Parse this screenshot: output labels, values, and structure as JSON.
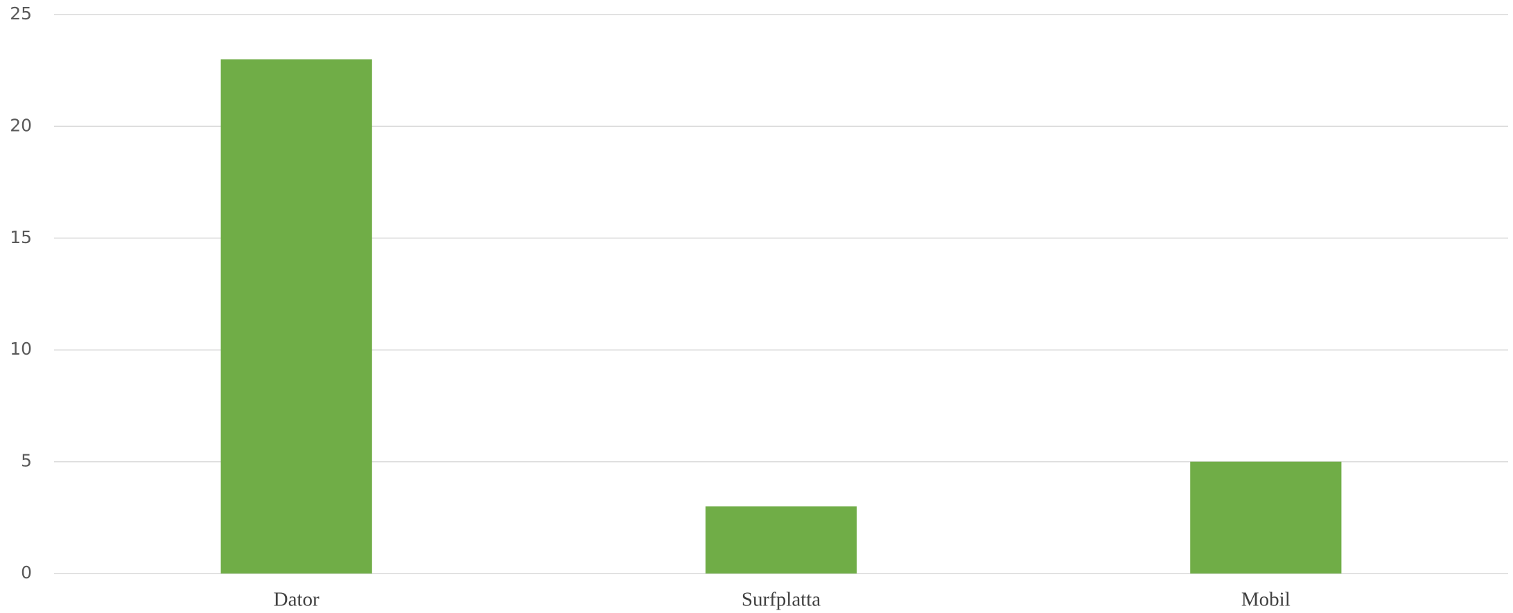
{
  "chart_data": {
    "type": "bar",
    "categories": [
      "Dator",
      "Surfplatta",
      "Mobil"
    ],
    "values": [
      23,
      3,
      5
    ],
    "color": "#70ad47",
    "ylim": [
      0,
      25
    ],
    "yticks": [
      0,
      5,
      10,
      15,
      20,
      25
    ],
    "grid": true
  }
}
